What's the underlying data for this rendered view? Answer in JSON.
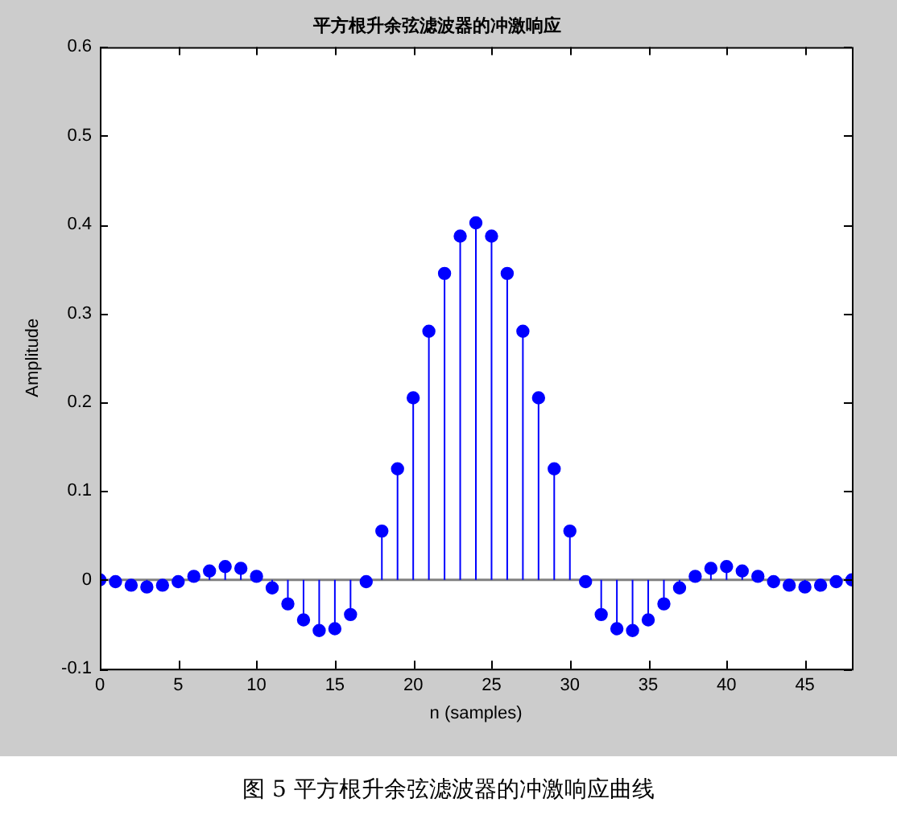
{
  "chart_data": {
    "type": "lollipop",
    "title": "平方根升余弦滤波器的冲激响应",
    "xlabel": "n (samples)",
    "ylabel": "Amplitude",
    "x": [
      0,
      1,
      2,
      3,
      4,
      5,
      6,
      7,
      8,
      9,
      10,
      11,
      12,
      13,
      14,
      15,
      16,
      17,
      18,
      19,
      20,
      21,
      22,
      23,
      24,
      25,
      26,
      27,
      28,
      29,
      30,
      31,
      32,
      33,
      34,
      35,
      36,
      37,
      38,
      39,
      40,
      41,
      42,
      43,
      44,
      45,
      46,
      47,
      48
    ],
    "series": [
      {
        "color": "#0000ff",
        "values": [
          0,
          -0.002,
          -0.006,
          -0.008,
          -0.006,
          -0.002,
          0.004,
          0.01,
          0.015,
          0.013,
          0.004,
          -0.009,
          -0.027,
          -0.045,
          -0.057,
          -0.055,
          -0.039,
          -0.002,
          0.055,
          0.125,
          0.205,
          0.28,
          0.345,
          0.387,
          0.402,
          0.387,
          0.345,
          0.28,
          0.205,
          0.125,
          0.055,
          -0.002,
          -0.039,
          -0.055,
          -0.057,
          -0.045,
          -0.027,
          -0.009,
          0.004,
          0.013,
          0.015,
          0.01,
          0.004,
          -0.002,
          -0.006,
          -0.008,
          -0.006,
          -0.002,
          0
        ]
      }
    ],
    "xlim": [
      0,
      48
    ],
    "xticks": [
      0,
      5,
      10,
      15,
      20,
      25,
      30,
      35,
      40,
      45
    ],
    "ylim": [
      -0.1,
      0.6
    ],
    "yticks": [
      -0.1,
      0,
      0.1,
      0.2,
      0.3,
      0.4,
      0.5,
      0.6
    ],
    "grid": false,
    "legend": false,
    "marker": "circle",
    "ref_lines": [
      {
        "axis": "y",
        "value": 0,
        "color": "#808080"
      }
    ],
    "annotations": [
      "图 5  平方根升余弦滤波器的冲激响应曲线"
    ]
  }
}
